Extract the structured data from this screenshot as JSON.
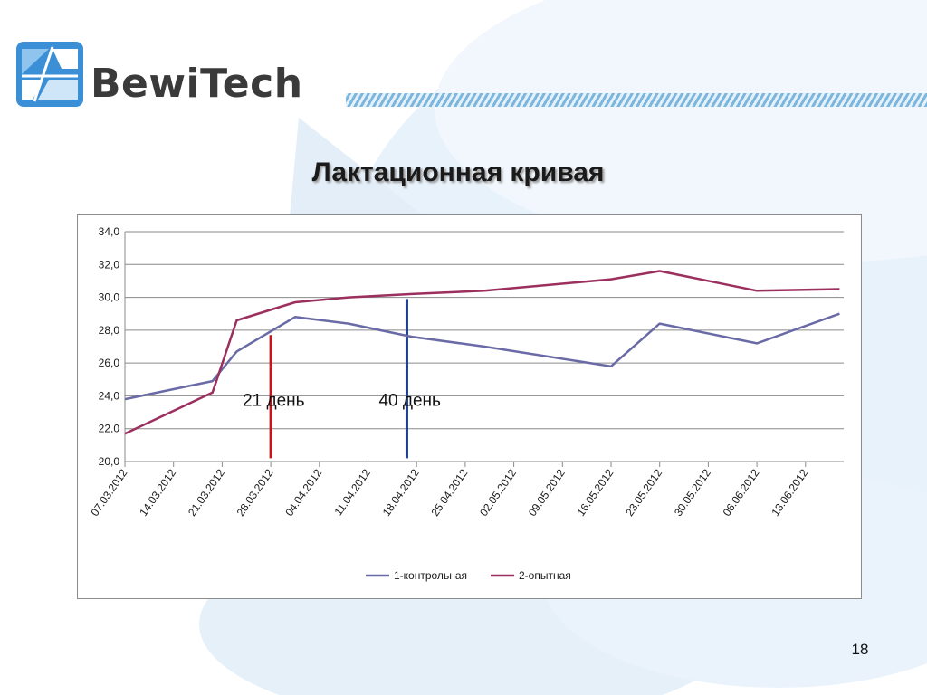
{
  "header": {
    "logo_text": "BewiTech",
    "page_title": "Лактационная кривая"
  },
  "colors": {
    "series_control": "#6a6aa6",
    "series_experimental": "#9b2f5e",
    "marker_21": "#c0161c",
    "marker_40": "#1f3f94",
    "stripe": "#7db6dc",
    "logo_blue": "#3b8fd6"
  },
  "footer": {
    "page_number": "18"
  },
  "chart_data": {
    "type": "line",
    "x": [
      "07.03.2012",
      "14.03.2012",
      "21.03.2012",
      "28.03.2012",
      "04.04.2012",
      "11.04.2012",
      "18.04.2012",
      "25.04.2012",
      "02.05.2012",
      "09.05.2012",
      "16.05.2012",
      "23.05.2012",
      "30.05.2012",
      "06.06.2012",
      "13.06.2012"
    ],
    "ylim": [
      20,
      34
    ],
    "yticks": [
      "20,0",
      "22,0",
      "24,0",
      "26,0",
      "28,0",
      "30,0",
      "32,0",
      "34,0"
    ],
    "grid": true,
    "legend": "bottom",
    "series": [
      {
        "name": "1-контрольная",
        "points": [
          [
            0,
            23.8
          ],
          [
            1.8,
            24.9
          ],
          [
            2.3,
            26.7
          ],
          [
            3.5,
            28.8
          ],
          [
            4.6,
            28.4
          ],
          [
            5.9,
            27.6
          ],
          [
            7.4,
            27.0
          ],
          [
            10.0,
            25.8
          ],
          [
            11.0,
            28.4
          ],
          [
            13.0,
            27.2
          ],
          [
            14.7,
            29.0
          ]
        ]
      },
      {
        "name": "2-опытная",
        "points": [
          [
            0,
            21.7
          ],
          [
            1.8,
            24.2
          ],
          [
            2.3,
            28.6
          ],
          [
            3.5,
            29.7
          ],
          [
            4.6,
            30.0
          ],
          [
            5.9,
            30.2
          ],
          [
            7.4,
            30.4
          ],
          [
            10.0,
            31.1
          ],
          [
            11.0,
            31.6
          ],
          [
            13.0,
            30.4
          ],
          [
            14.7,
            30.5
          ]
        ]
      }
    ],
    "annotations": [
      {
        "label": "21 день",
        "x": 3.0,
        "y_from": 20.2,
        "y_to": 27.7,
        "color": "#c0161c"
      },
      {
        "label": "40 день",
        "x": 5.8,
        "y_from": 20.2,
        "y_to": 29.9,
        "color": "#1f3f94"
      }
    ]
  }
}
